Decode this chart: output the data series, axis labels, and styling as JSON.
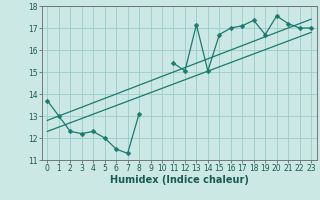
{
  "xlabel": "Humidex (Indice chaleur)",
  "bg_color": "#cce8e4",
  "line_color": "#1a7a6e",
  "grid_color": "#99cccc",
  "x_data": [
    0,
    1,
    2,
    3,
    4,
    5,
    6,
    7,
    8,
    9,
    10,
    11,
    12,
    13,
    14,
    15,
    16,
    17,
    18,
    19,
    20,
    21,
    22,
    23
  ],
  "y_data": [
    13.7,
    13.0,
    12.3,
    12.2,
    12.3,
    12.0,
    11.5,
    11.3,
    13.1,
    null,
    null,
    15.4,
    15.05,
    17.15,
    15.05,
    16.7,
    17.0,
    17.1,
    17.35,
    16.7,
    17.55,
    17.2,
    17.0,
    17.0
  ],
  "trend1_x": [
    0,
    23
  ],
  "trend1_y": [
    12.3,
    16.8
  ],
  "trend2_x": [
    0,
    23
  ],
  "trend2_y": [
    12.8,
    17.4
  ],
  "xlim": [
    -0.5,
    23.5
  ],
  "ylim": [
    11.0,
    18.0
  ],
  "xticks": [
    0,
    1,
    2,
    3,
    4,
    5,
    6,
    7,
    8,
    9,
    10,
    11,
    12,
    13,
    14,
    15,
    16,
    17,
    18,
    19,
    20,
    21,
    22,
    23
  ],
  "yticks": [
    11,
    12,
    13,
    14,
    15,
    16,
    17,
    18
  ],
  "tick_fontsize": 5.5,
  "label_fontsize": 7,
  "marker_size": 2.5,
  "line_width": 0.9
}
